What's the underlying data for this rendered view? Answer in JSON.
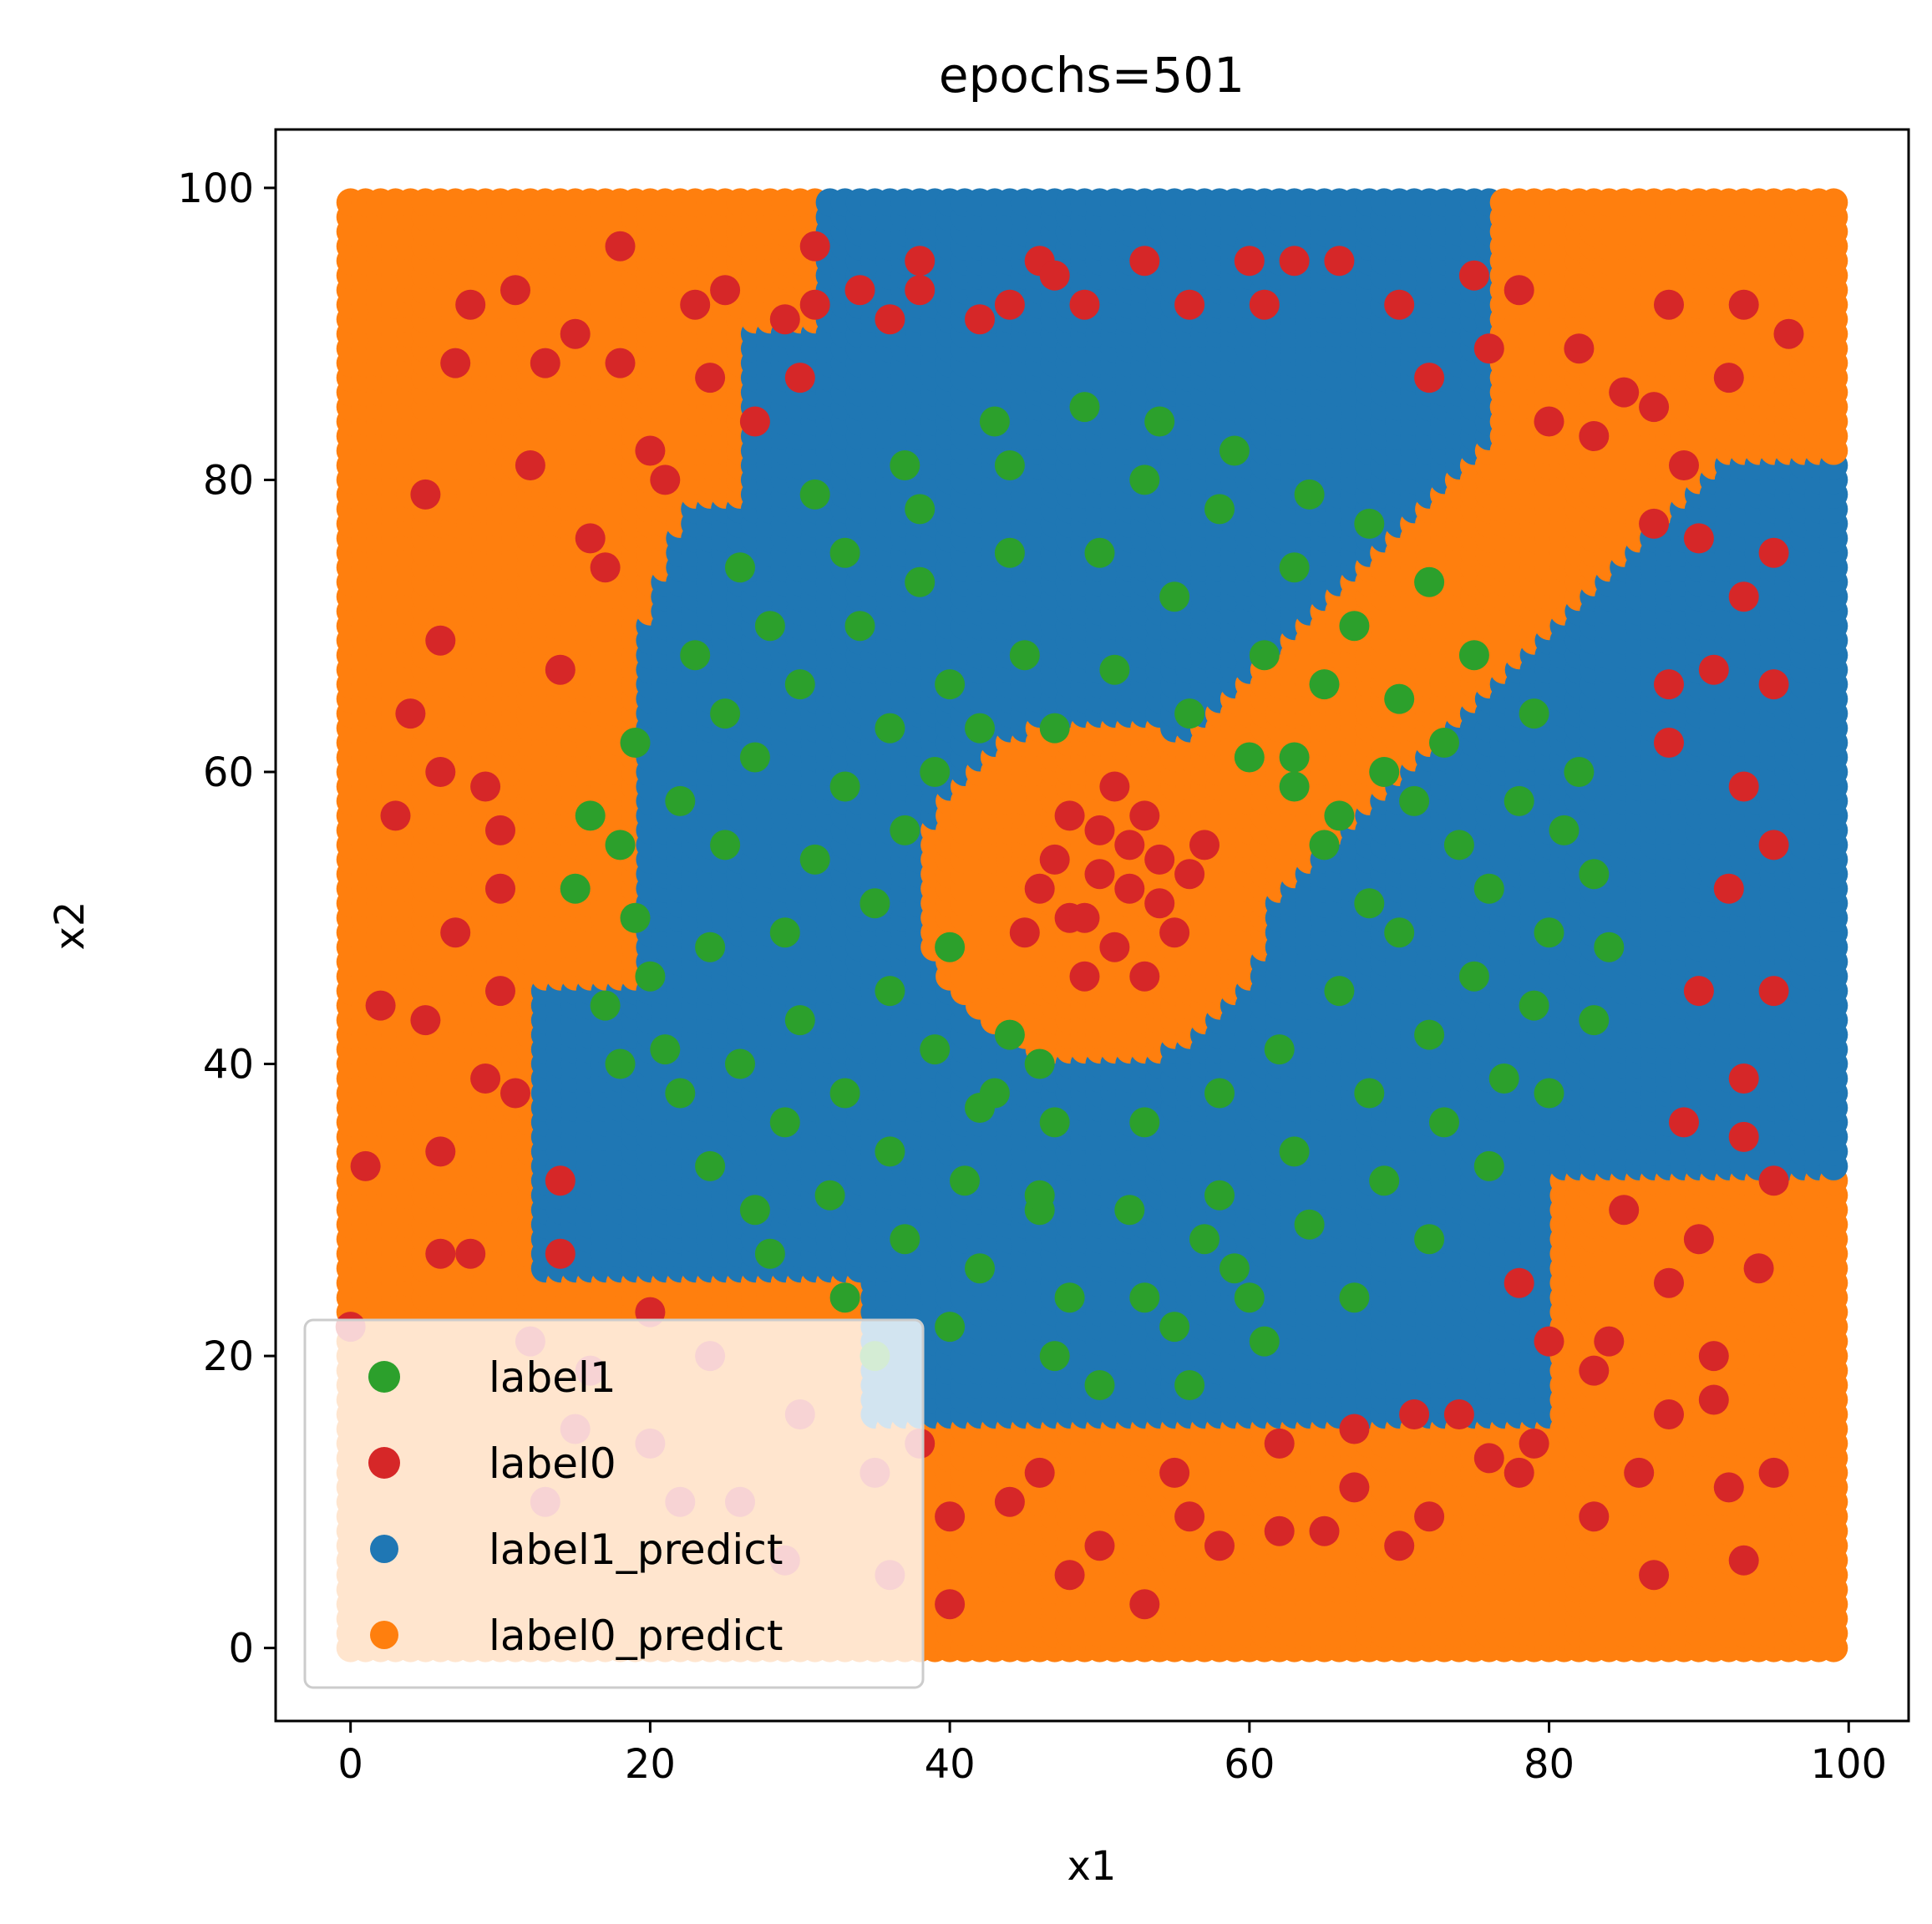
{
  "chart_data": {
    "type": "scatter",
    "title": "epochs=501",
    "xlabel": "x1",
    "ylabel": "x2",
    "xlim": [
      -5,
      104
    ],
    "ylim": [
      -5,
      104
    ],
    "xticks": [
      0,
      20,
      40,
      60,
      80,
      100
    ],
    "yticks": [
      0,
      20,
      40,
      60,
      80,
      100
    ],
    "grid": false,
    "legend_position": "lower-left",
    "series": [
      {
        "name": "label1",
        "color": "#2ca02c",
        "points": [
          [
            42,
            37
          ],
          [
            46,
            30
          ],
          [
            55,
            22
          ],
          [
            50,
            18
          ],
          [
            35,
            20
          ],
          [
            27,
            30
          ],
          [
            22,
            38
          ],
          [
            20,
            46
          ],
          [
            18,
            55
          ],
          [
            19,
            62
          ],
          [
            23,
            68
          ],
          [
            26,
            74
          ],
          [
            31,
            79
          ],
          [
            37,
            81
          ],
          [
            43,
            84
          ],
          [
            49,
            85
          ],
          [
            54,
            84
          ],
          [
            59,
            82
          ],
          [
            64,
            79
          ],
          [
            68,
            77
          ],
          [
            72,
            73
          ],
          [
            75,
            68
          ],
          [
            79,
            64
          ],
          [
            82,
            60
          ],
          [
            83,
            53
          ],
          [
            84,
            48
          ],
          [
            83,
            43
          ],
          [
            80,
            38
          ],
          [
            76,
            33
          ],
          [
            72,
            28
          ],
          [
            67,
            24
          ],
          [
            61,
            21
          ],
          [
            56,
            18
          ],
          [
            47,
            20
          ],
          [
            40,
            22
          ],
          [
            33,
            24
          ],
          [
            28,
            27
          ],
          [
            24,
            33
          ],
          [
            21,
            41
          ],
          [
            19,
            50
          ],
          [
            22,
            58
          ],
          [
            25,
            64
          ],
          [
            28,
            70
          ],
          [
            33,
            75
          ],
          [
            38,
            78
          ],
          [
            44,
            81
          ],
          [
            53,
            80
          ],
          [
            58,
            78
          ],
          [
            63,
            74
          ],
          [
            67,
            70
          ],
          [
            70,
            65
          ],
          [
            73,
            62
          ],
          [
            78,
            58
          ],
          [
            81,
            56
          ],
          [
            80,
            49
          ],
          [
            79,
            44
          ],
          [
            77,
            39
          ],
          [
            73,
            36
          ],
          [
            69,
            32
          ],
          [
            64,
            29
          ],
          [
            59,
            26
          ],
          [
            53,
            24
          ],
          [
            48,
            24
          ],
          [
            42,
            26
          ],
          [
            37,
            28
          ],
          [
            32,
            31
          ],
          [
            29,
            36
          ],
          [
            26,
            40
          ],
          [
            24,
            48
          ],
          [
            25,
            55
          ],
          [
            27,
            61
          ],
          [
            30,
            66
          ],
          [
            34,
            70
          ],
          [
            38,
            73
          ],
          [
            44,
            75
          ],
          [
            50,
            75
          ],
          [
            55,
            72
          ],
          [
            61,
            68
          ],
          [
            65,
            66
          ],
          [
            69,
            60
          ],
          [
            71,
            58
          ],
          [
            74,
            55
          ],
          [
            76,
            52
          ],
          [
            75,
            46
          ],
          [
            72,
            42
          ],
          [
            68,
            38
          ],
          [
            63,
            34
          ],
          [
            58,
            31
          ],
          [
            52,
            30
          ],
          [
            46,
            31
          ],
          [
            41,
            32
          ],
          [
            36,
            34
          ],
          [
            33,
            38
          ],
          [
            30,
            43
          ],
          [
            29,
            49
          ],
          [
            31,
            54
          ],
          [
            33,
            59
          ],
          [
            36,
            63
          ],
          [
            40,
            66
          ],
          [
            45,
            68
          ],
          [
            51,
            67
          ],
          [
            56,
            64
          ],
          [
            60,
            61
          ],
          [
            63,
            59
          ],
          [
            65,
            55
          ],
          [
            68,
            51
          ],
          [
            70,
            49
          ],
          [
            66,
            45
          ],
          [
            62,
            41
          ],
          [
            58,
            38
          ],
          [
            53,
            36
          ],
          [
            47,
            36
          ],
          [
            43,
            38
          ],
          [
            39,
            41
          ],
          [
            36,
            45
          ],
          [
            35,
            51
          ],
          [
            37,
            56
          ],
          [
            39,
            60
          ],
          [
            42,
            63
          ],
          [
            47,
            63
          ],
          [
            63,
            61
          ],
          [
            66,
            57
          ],
          [
            15,
            52
          ],
          [
            16,
            57
          ],
          [
            17,
            44
          ],
          [
            18,
            40
          ],
          [
            57,
            28
          ],
          [
            60,
            24
          ],
          [
            40,
            48
          ],
          [
            44,
            42
          ],
          [
            46,
            40
          ]
        ]
      },
      {
        "name": "label0",
        "color": "#d62728",
        "points": [
          [
            50,
            53
          ],
          [
            48,
            50
          ],
          [
            52,
            55
          ],
          [
            54,
            51
          ],
          [
            51,
            48
          ],
          [
            47,
            54
          ],
          [
            53,
            57
          ],
          [
            49,
            46
          ],
          [
            55,
            49
          ],
          [
            46,
            52
          ],
          [
            52,
            52
          ],
          [
            50,
            56
          ],
          [
            48,
            57
          ],
          [
            56,
            53
          ],
          [
            53,
            46
          ],
          [
            45,
            49
          ],
          [
            51,
            59
          ],
          [
            57,
            55
          ],
          [
            49,
            50
          ],
          [
            54,
            54
          ],
          [
            5,
            79
          ],
          [
            8,
            92
          ],
          [
            11,
            93
          ],
          [
            15,
            90
          ],
          [
            18,
            96
          ],
          [
            23,
            92
          ],
          [
            7,
            88
          ],
          [
            12,
            81
          ],
          [
            16,
            76
          ],
          [
            20,
            82
          ],
          [
            24,
            87
          ],
          [
            6,
            69
          ],
          [
            9,
            59
          ],
          [
            4,
            64
          ],
          [
            3,
            57
          ],
          [
            10,
            52
          ],
          [
            7,
            49
          ],
          [
            5,
            43
          ],
          [
            9,
            39
          ],
          [
            14,
            32
          ],
          [
            1,
            33
          ],
          [
            2,
            44
          ],
          [
            0,
            22
          ],
          [
            6,
            34
          ],
          [
            8,
            27
          ],
          [
            12,
            21
          ],
          [
            15,
            15
          ],
          [
            22,
            10
          ],
          [
            30,
            16
          ],
          [
            35,
            12
          ],
          [
            40,
            9
          ],
          [
            46,
            12
          ],
          [
            50,
            7
          ],
          [
            56,
            9
          ],
          [
            62,
            14
          ],
          [
            67,
            11
          ],
          [
            72,
            9
          ],
          [
            78,
            12
          ],
          [
            83,
            9
          ],
          [
            87,
            5
          ],
          [
            92,
            11
          ],
          [
            95,
            12
          ],
          [
            93,
            6
          ],
          [
            91,
            20
          ],
          [
            94,
            26
          ],
          [
            88,
            25
          ],
          [
            83,
            19
          ],
          [
            78,
            25
          ],
          [
            85,
            30
          ],
          [
            90,
            28
          ],
          [
            95,
            32
          ],
          [
            93,
            39
          ],
          [
            90,
            45
          ],
          [
            95,
            45
          ],
          [
            89,
            36
          ],
          [
            93,
            35
          ],
          [
            92,
            52
          ],
          [
            95,
            55
          ],
          [
            88,
            62
          ],
          [
            93,
            59
          ],
          [
            91,
            67
          ],
          [
            95,
            66
          ],
          [
            88,
            66
          ],
          [
            93,
            72
          ],
          [
            90,
            76
          ],
          [
            95,
            75
          ],
          [
            87,
            77
          ],
          [
            83,
            83
          ],
          [
            87,
            85
          ],
          [
            92,
            87
          ],
          [
            96,
            90
          ],
          [
            93,
            92
          ],
          [
            88,
            92
          ],
          [
            82,
            89
          ],
          [
            78,
            93
          ],
          [
            76,
            89
          ],
          [
            72,
            87
          ],
          [
            70,
            92
          ],
          [
            66,
            95
          ],
          [
            63,
            95
          ],
          [
            61,
            92
          ],
          [
            56,
            92
          ],
          [
            53,
            95
          ],
          [
            49,
            92
          ],
          [
            46,
            95
          ],
          [
            42,
            91
          ],
          [
            38,
            93
          ],
          [
            34,
            93
          ],
          [
            31,
            96
          ],
          [
            29,
            91
          ],
          [
            30,
            87
          ],
          [
            36,
            91
          ],
          [
            44,
            92
          ],
          [
            47,
            94
          ],
          [
            60,
            95
          ],
          [
            75,
            94
          ],
          [
            80,
            84
          ],
          [
            85,
            86
          ],
          [
            89,
            81
          ],
          [
            27,
            84
          ],
          [
            31,
            92
          ],
          [
            38,
            95
          ],
          [
            25,
            93
          ],
          [
            13,
            88
          ],
          [
            18,
            88
          ],
          [
            21,
            80
          ],
          [
            17,
            74
          ],
          [
            14,
            67
          ],
          [
            10,
            56
          ],
          [
            10,
            45
          ],
          [
            11,
            38
          ],
          [
            14,
            27
          ],
          [
            6,
            27
          ],
          [
            6,
            60
          ],
          [
            24,
            20
          ],
          [
            20,
            23
          ],
          [
            29,
            6
          ],
          [
            38,
            14
          ],
          [
            44,
            10
          ],
          [
            48,
            5
          ],
          [
            53,
            3
          ],
          [
            58,
            7
          ],
          [
            65,
            8
          ],
          [
            70,
            7
          ],
          [
            74,
            16
          ],
          [
            80,
            21
          ],
          [
            86,
            12
          ],
          [
            88,
            16
          ],
          [
            91,
            17
          ],
          [
            84,
            21
          ],
          [
            79,
            14
          ],
          [
            76,
            13
          ],
          [
            71,
            16
          ],
          [
            62,
            8
          ],
          [
            67,
            15
          ],
          [
            55,
            12
          ],
          [
            40,
            3
          ],
          [
            36,
            5
          ],
          [
            26,
            10
          ],
          [
            20,
            14
          ],
          [
            16,
            19
          ],
          [
            13,
            10
          ]
        ]
      }
    ],
    "regions": [
      {
        "name": "label1_predict",
        "color": "#1f77b4",
        "shape": "filled-grid"
      },
      {
        "name": "label0_predict",
        "color": "#ff7f0e",
        "shape": "filled-grid"
      }
    ]
  }
}
